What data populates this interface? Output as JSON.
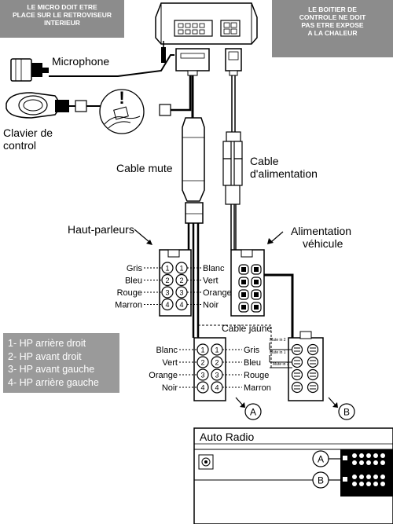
{
  "notes": {
    "micro": [
      "LE MICRO DOIT ETRE",
      "PLACE SUR LE RETROVISEUR",
      "INTERIEUR"
    ],
    "boitier": [
      "LE BOITIER DE",
      "CONTROLE NE DOIT",
      "PAS ETRE EXPOSE",
      "A LA CHALEUR"
    ]
  },
  "labels": {
    "microphone": "Microphone",
    "clavier": [
      "Clavier de",
      "control"
    ],
    "cable_mute": "Cable mute",
    "cable_alim": [
      "Cable",
      "d'alimentation"
    ],
    "haut_parleurs": "Haut-parleurs",
    "alimentation": [
      "Alimentation",
      "véhicule"
    ],
    "cable_jaune": "Cable jaune",
    "auto_radio": "Auto Radio",
    "connector_a": "A",
    "connector_b": "B",
    "exclamation": "!"
  },
  "speaker_top": {
    "left_colors": [
      "Gris",
      "Bleu",
      "Rouge",
      "Marron"
    ],
    "numbers": [
      "1",
      "2",
      "3",
      "4"
    ],
    "right_colors": [
      "Blanc",
      "Vert",
      "Orange",
      "Noir"
    ]
  },
  "speaker_bottom": {
    "left_colors": [
      "Blanc",
      "Vert",
      "Orange",
      "Noir"
    ],
    "numbers": [
      "1",
      "2",
      "3",
      "4"
    ],
    "right_colors": [
      "Gris",
      "Bleu",
      "Rouge",
      "Marron"
    ]
  },
  "mute_labels": [
    "Mute in 2",
    "Mute in 1",
    "Mute in 3"
  ],
  "legend": [
    "1- HP arrière droit",
    "2- HP avant droit",
    "3- HP avant gauche",
    "4- HP arrière gauche"
  ]
}
